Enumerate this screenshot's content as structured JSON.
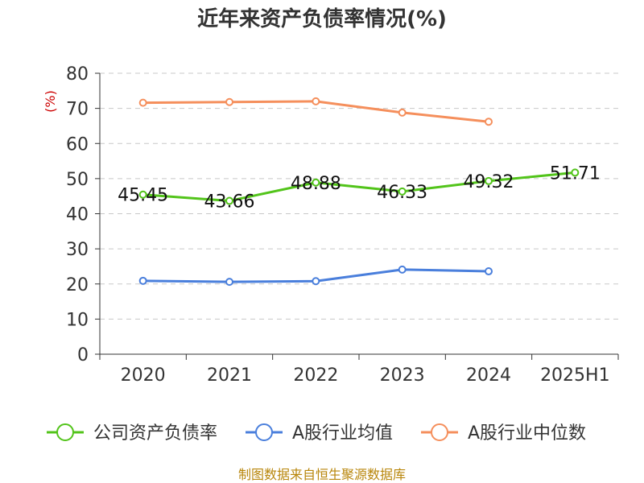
{
  "chart_data": {
    "type": "line",
    "title": "近年来资产负债率情况(%)",
    "ylabel": "(%)",
    "xlabel": "",
    "categories": [
      "2020",
      "2021",
      "2022",
      "2023",
      "2024",
      "2025H1"
    ],
    "ylim": [
      0,
      80
    ],
    "yticks": [
      0,
      10,
      20,
      30,
      40,
      50,
      60,
      70,
      80
    ],
    "grid": true,
    "legend_position": "bottom",
    "series": [
      {
        "name": "公司资产负债率",
        "color": "#52c41a",
        "show_labels": true,
        "values": [
          45.45,
          43.66,
          48.88,
          46.33,
          49.32,
          51.71
        ],
        "labels": [
          "45.45",
          "43.66",
          "48.88",
          "46.33",
          "49.32",
          "51.71"
        ]
      },
      {
        "name": "A股行业均值",
        "color": "#4a7fdc",
        "show_labels": false,
        "values": [
          20.9,
          20.6,
          20.8,
          24.1,
          23.6,
          null
        ]
      },
      {
        "name": "A股行业中位数",
        "color": "#f58f5c",
        "show_labels": false,
        "values": [
          71.6,
          71.8,
          72.0,
          68.8,
          66.2,
          null
        ]
      }
    ]
  },
  "source_note": "制图数据来自恒生聚源数据库"
}
